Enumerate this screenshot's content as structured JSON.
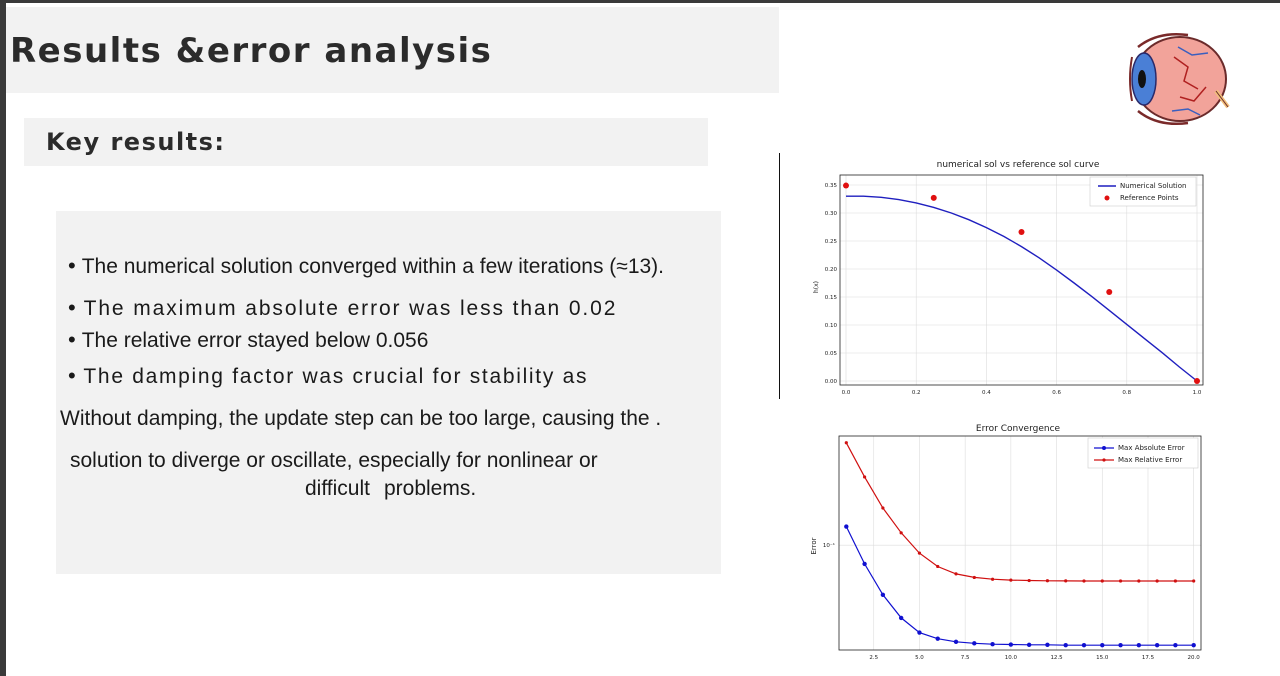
{
  "slide": {
    "title": "Results &error analysis",
    "key_results_label": "Key results:",
    "bullets": [
      "The numerical solution converged within a few iterations (≈13).",
      "The maximum absolute error was less than 0.02",
      "The relative error stayed below 0.056",
      "The damping factor was crucial for stability as"
    ],
    "paragraph": {
      "line1": "Without damping, the update step can be too large, causing the .",
      "line2": "solution to diverge or oscillate, especially for nonlinear or",
      "line3a": "difficult",
      "line3b": "problems."
    }
  },
  "colors": {
    "background": "#ffffff",
    "panel": "#f2f2f2",
    "numerical_line": "#1f1fbf",
    "reference_points": "#e01010",
    "abs_error": "#1010d0",
    "rel_error": "#d01010"
  },
  "icons": {
    "eye": "eye-anatomy-illustration"
  },
  "chart_data": [
    {
      "type": "line",
      "title": "numerical sol vs reference sol curve",
      "xlabel": "",
      "ylabel": "h(x)",
      "xlim": [
        0.0,
        1.0
      ],
      "ylim": [
        0.0,
        0.35
      ],
      "xticks": [
        "0.0",
        "0.2",
        "0.4",
        "0.6",
        "0.8",
        "1.0"
      ],
      "yticks": [
        "0.00",
        "0.05",
        "0.10",
        "0.15",
        "0.20",
        "0.25",
        "0.30",
        "0.35"
      ],
      "grid": true,
      "legend_position": "top-right",
      "series": [
        {
          "name": "Numerical Solution",
          "kind": "line",
          "x": [
            0.0,
            0.05,
            0.1,
            0.15,
            0.2,
            0.25,
            0.3,
            0.35,
            0.4,
            0.45,
            0.5,
            0.55,
            0.6,
            0.65,
            0.7,
            0.75,
            0.8,
            0.85,
            0.9,
            0.95,
            1.0
          ],
          "y": [
            0.33,
            0.33,
            0.328,
            0.324,
            0.318,
            0.31,
            0.3,
            0.288,
            0.274,
            0.258,
            0.24,
            0.22,
            0.198,
            0.175,
            0.151,
            0.126,
            0.101,
            0.076,
            0.051,
            0.025,
            0.0
          ]
        },
        {
          "name": "Reference Points",
          "kind": "scatter",
          "x": [
            0.0,
            0.25,
            0.5,
            0.75,
            1.0
          ],
          "y": [
            0.349,
            0.327,
            0.266,
            0.159,
            0.0
          ]
        }
      ]
    },
    {
      "type": "line",
      "title": "Error Convergence",
      "xlabel": "",
      "ylabel": "Error",
      "xlim": [
        1,
        20
      ],
      "yscale": "log",
      "ylim": [
        0.0185,
        0.58
      ],
      "xticks": [
        "2.5",
        "5.0",
        "7.5",
        "10.0",
        "12.5",
        "15.0",
        "17.5",
        "20.0"
      ],
      "yticks": [
        "10⁻¹"
      ],
      "grid": true,
      "legend_position": "top-right",
      "x": [
        1,
        2,
        3,
        4,
        5,
        6,
        7,
        8,
        9,
        10,
        11,
        12,
        13,
        14,
        15,
        16,
        17,
        18,
        19,
        20
      ],
      "series": [
        {
          "name": "Max Absolute Error",
          "values": [
            0.135,
            0.074,
            0.045,
            0.031,
            0.0245,
            0.0222,
            0.0211,
            0.0206,
            0.0203,
            0.0202,
            0.0201,
            0.0201,
            0.02,
            0.02,
            0.02,
            0.02,
            0.02,
            0.02,
            0.02,
            0.02
          ]
        },
        {
          "name": "Max Relative Error",
          "values": [
            0.52,
            0.3,
            0.182,
            0.122,
            0.088,
            0.071,
            0.063,
            0.0595,
            0.0578,
            0.057,
            0.0566,
            0.0564,
            0.0563,
            0.0562,
            0.0562,
            0.0562,
            0.0562,
            0.0562,
            0.0562,
            0.0562
          ]
        }
      ]
    }
  ]
}
